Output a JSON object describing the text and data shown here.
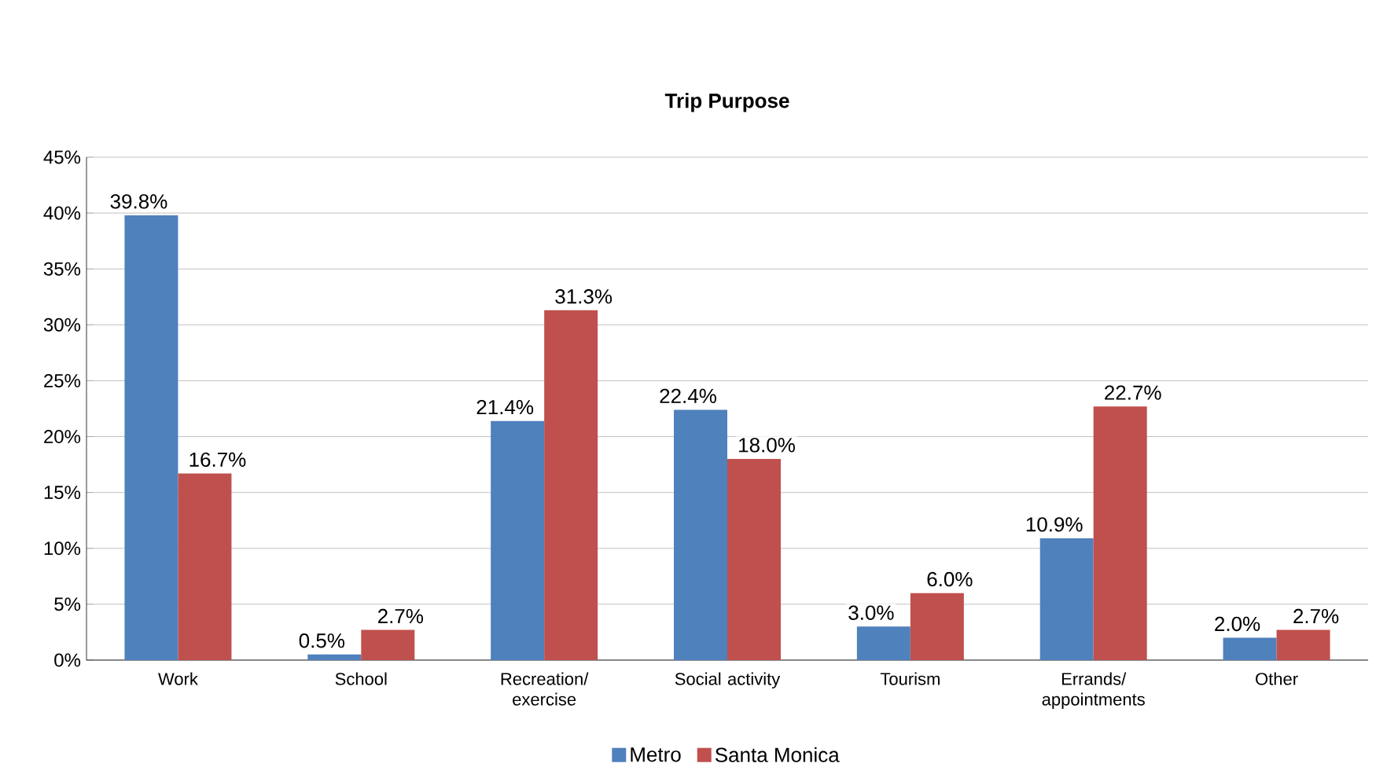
{
  "chart_data": {
    "type": "bar",
    "title": "Trip Purpose",
    "categories": [
      "Work",
      "School",
      "Recreation/ exercise",
      "Social activity",
      "Tourism",
      "Errands/ appointments",
      "Other"
    ],
    "series": [
      {
        "name": "Metro",
        "color": "#4f81bd",
        "values": [
          39.8,
          0.5,
          21.4,
          22.4,
          3.0,
          10.9,
          2.0
        ],
        "value_labels": [
          "39.8%",
          "0.5%",
          "21.4%",
          "22.4%",
          "3.0%",
          "10.9%",
          "2.0%"
        ]
      },
      {
        "name": "Santa Monica",
        "color": "#c0504d",
        "values": [
          16.7,
          2.7,
          31.3,
          18.0,
          6.0,
          22.7,
          2.7
        ],
        "value_labels": [
          "16.7%",
          "2.7%",
          "31.3%",
          "18.0%",
          "6.0%",
          "22.7%",
          "2.7%"
        ]
      }
    ],
    "ylim": [
      0,
      45
    ],
    "yticks": [
      {
        "value": 0,
        "label": "0%"
      },
      {
        "value": 5,
        "label": "5%"
      },
      {
        "value": 10,
        "label": "10%"
      },
      {
        "value": 15,
        "label": "15%"
      },
      {
        "value": 20,
        "label": "20%"
      },
      {
        "value": 25,
        "label": "25%"
      },
      {
        "value": 30,
        "label": "30%"
      },
      {
        "value": 35,
        "label": "35%"
      },
      {
        "value": 40,
        "label": "40%"
      },
      {
        "value": 45,
        "label": "45%"
      }
    ],
    "grid": "y",
    "legend": "bottom"
  }
}
